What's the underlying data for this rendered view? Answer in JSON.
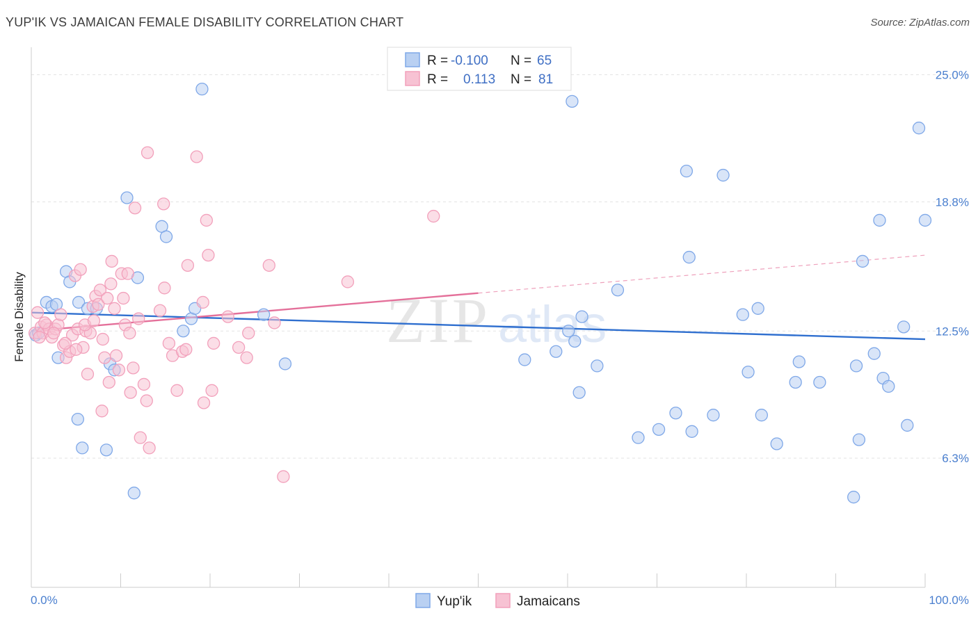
{
  "title": "YUP'IK VS JAMAICAN FEMALE DISABILITY CORRELATION CHART",
  "source": "Source: ZipAtlas.com",
  "watermark": {
    "zip": "ZIP",
    "atlas": "atlas"
  },
  "legend_box": [
    {
      "r_label": "R =",
      "r_value": "-0.100",
      "n_label": "N =",
      "n_value": "65"
    },
    {
      "r_label": "R =",
      "r_value": "0.113",
      "n_label": "N =",
      "n_value": "81"
    }
  ],
  "chart_data": {
    "type": "scatter",
    "title": "YUP'IK VS JAMAICAN FEMALE DISABILITY CORRELATION CHART",
    "xlabel": "",
    "ylabel": "Female Disability",
    "xlim": [
      0,
      100
    ],
    "ylim": [
      0,
      26
    ],
    "x_tick_labels": [
      "0.0%",
      "100.0%"
    ],
    "y_ticks": [
      6.3,
      12.5,
      18.8,
      25.0
    ],
    "y_tick_labels": [
      "6.3%",
      "12.5%",
      "18.8%",
      "25.0%"
    ],
    "grid": true,
    "legend_position": "bottom",
    "series": [
      {
        "name": "Yup'ik",
        "color": "#7fa8e8",
        "fill": "#b9d0f2",
        "r": -0.1,
        "n": 65,
        "trend": {
          "x0": 0,
          "y0": 13.4,
          "x1": 100,
          "y1": 12.1,
          "dashed_from": null
        },
        "points": [
          [
            0.5,
            12.3
          ],
          [
            1.7,
            13.9
          ],
          [
            2.3,
            13.7
          ],
          [
            2.8,
            13.8
          ],
          [
            3.0,
            11.2
          ],
          [
            3.9,
            15.4
          ],
          [
            4.3,
            14.9
          ],
          [
            5.2,
            8.2
          ],
          [
            5.3,
            13.9
          ],
          [
            5.7,
            6.8
          ],
          [
            6.3,
            13.6
          ],
          [
            7.3,
            13.6
          ],
          [
            8.4,
            6.7
          ],
          [
            8.8,
            10.9
          ],
          [
            9.3,
            10.6
          ],
          [
            10.7,
            19.0
          ],
          [
            11.5,
            4.6
          ],
          [
            11.9,
            15.1
          ],
          [
            14.6,
            17.6
          ],
          [
            15.1,
            17.1
          ],
          [
            17.0,
            12.5
          ],
          [
            17.9,
            13.1
          ],
          [
            18.3,
            13.6
          ],
          [
            19.1,
            24.3
          ],
          [
            26.0,
            13.3
          ],
          [
            28.4,
            10.9
          ],
          [
            40.9,
            24.9
          ],
          [
            60.5,
            23.7
          ],
          [
            61.6,
            13.2
          ],
          [
            55.2,
            11.1
          ],
          [
            58.7,
            11.5
          ],
          [
            60.1,
            12.5
          ],
          [
            60.8,
            12.0
          ],
          [
            61.3,
            9.5
          ],
          [
            63.3,
            10.8
          ],
          [
            65.6,
            14.5
          ],
          [
            67.9,
            7.3
          ],
          [
            70.2,
            7.7
          ],
          [
            72.1,
            8.5
          ],
          [
            73.3,
            20.3
          ],
          [
            73.6,
            16.1
          ],
          [
            73.9,
            7.6
          ],
          [
            76.3,
            8.4
          ],
          [
            77.4,
            20.1
          ],
          [
            79.6,
            13.3
          ],
          [
            80.2,
            10.5
          ],
          [
            81.3,
            13.6
          ],
          [
            81.7,
            8.4
          ],
          [
            83.4,
            7.0
          ],
          [
            85.5,
            10.0
          ],
          [
            85.9,
            11.0
          ],
          [
            88.2,
            10.0
          ],
          [
            92.0,
            4.4
          ],
          [
            92.3,
            10.8
          ],
          [
            92.6,
            7.2
          ],
          [
            93.0,
            15.9
          ],
          [
            94.3,
            11.4
          ],
          [
            94.9,
            17.9
          ],
          [
            95.3,
            10.2
          ],
          [
            95.9,
            9.8
          ],
          [
            97.6,
            12.7
          ],
          [
            98.0,
            7.9
          ],
          [
            99.3,
            22.4
          ],
          [
            100.0,
            17.9
          ],
          [
            0.8,
            12.4
          ]
        ]
      },
      {
        "name": "Jamaicans",
        "color": "#f2a0bb",
        "fill": "#f7c2d3",
        "r": 0.113,
        "n": 81,
        "trend": {
          "x0": 0,
          "y0": 12.5,
          "x1": 100,
          "y1": 16.2,
          "dashed_from": 50
        },
        "points": [
          [
            0.4,
            12.4
          ],
          [
            0.7,
            13.4
          ],
          [
            1.1,
            12.7
          ],
          [
            1.3,
            12.4
          ],
          [
            1.7,
            12.8
          ],
          [
            2.0,
            12.6
          ],
          [
            2.3,
            12.2
          ],
          [
            2.7,
            12.6
          ],
          [
            3.0,
            12.8
          ],
          [
            3.3,
            13.3
          ],
          [
            3.6,
            11.8
          ],
          [
            3.9,
            11.2
          ],
          [
            4.3,
            11.5
          ],
          [
            4.6,
            12.3
          ],
          [
            4.9,
            15.2
          ],
          [
            5.2,
            12.6
          ],
          [
            5.5,
            15.5
          ],
          [
            5.8,
            11.7
          ],
          [
            6.1,
            12.5
          ],
          [
            6.3,
            10.4
          ],
          [
            6.6,
            12.4
          ],
          [
            6.9,
            13.7
          ],
          [
            7.2,
            14.2
          ],
          [
            7.5,
            13.8
          ],
          [
            7.7,
            14.5
          ],
          [
            7.9,
            8.6
          ],
          [
            8.2,
            11.2
          ],
          [
            8.5,
            14.1
          ],
          [
            8.7,
            10.0
          ],
          [
            8.9,
            14.8
          ],
          [
            9.0,
            15.9
          ],
          [
            9.3,
            13.6
          ],
          [
            9.5,
            11.3
          ],
          [
            9.8,
            10.6
          ],
          [
            10.1,
            15.3
          ],
          [
            10.3,
            14.1
          ],
          [
            10.5,
            12.8
          ],
          [
            10.8,
            15.3
          ],
          [
            11.0,
            12.4
          ],
          [
            11.1,
            9.5
          ],
          [
            11.4,
            10.7
          ],
          [
            11.6,
            18.5
          ],
          [
            12.0,
            13.1
          ],
          [
            12.2,
            7.3
          ],
          [
            12.6,
            9.9
          ],
          [
            12.9,
            9.1
          ],
          [
            13.0,
            21.2
          ],
          [
            13.2,
            6.8
          ],
          [
            14.4,
            13.5
          ],
          [
            14.8,
            18.7
          ],
          [
            14.9,
            14.6
          ],
          [
            15.4,
            11.9
          ],
          [
            15.8,
            11.3
          ],
          [
            16.3,
            9.6
          ],
          [
            16.9,
            11.5
          ],
          [
            17.3,
            11.6
          ],
          [
            17.5,
            15.7
          ],
          [
            18.5,
            21.0
          ],
          [
            19.2,
            13.9
          ],
          [
            19.3,
            9.0
          ],
          [
            19.6,
            17.9
          ],
          [
            19.8,
            16.2
          ],
          [
            20.2,
            9.6
          ],
          [
            20.4,
            11.9
          ],
          [
            22.0,
            13.2
          ],
          [
            23.2,
            11.7
          ],
          [
            24.1,
            11.2
          ],
          [
            24.3,
            12.4
          ],
          [
            26.6,
            15.7
          ],
          [
            27.2,
            12.9
          ],
          [
            28.2,
            5.4
          ],
          [
            35.4,
            14.9
          ],
          [
            45.0,
            18.1
          ],
          [
            0.9,
            12.2
          ],
          [
            1.5,
            12.9
          ],
          [
            2.5,
            12.4
          ],
          [
            3.8,
            11.9
          ],
          [
            5.0,
            11.6
          ],
          [
            6.0,
            12.8
          ],
          [
            7.0,
            13.0
          ],
          [
            8.0,
            12.1
          ]
        ]
      }
    ]
  }
}
